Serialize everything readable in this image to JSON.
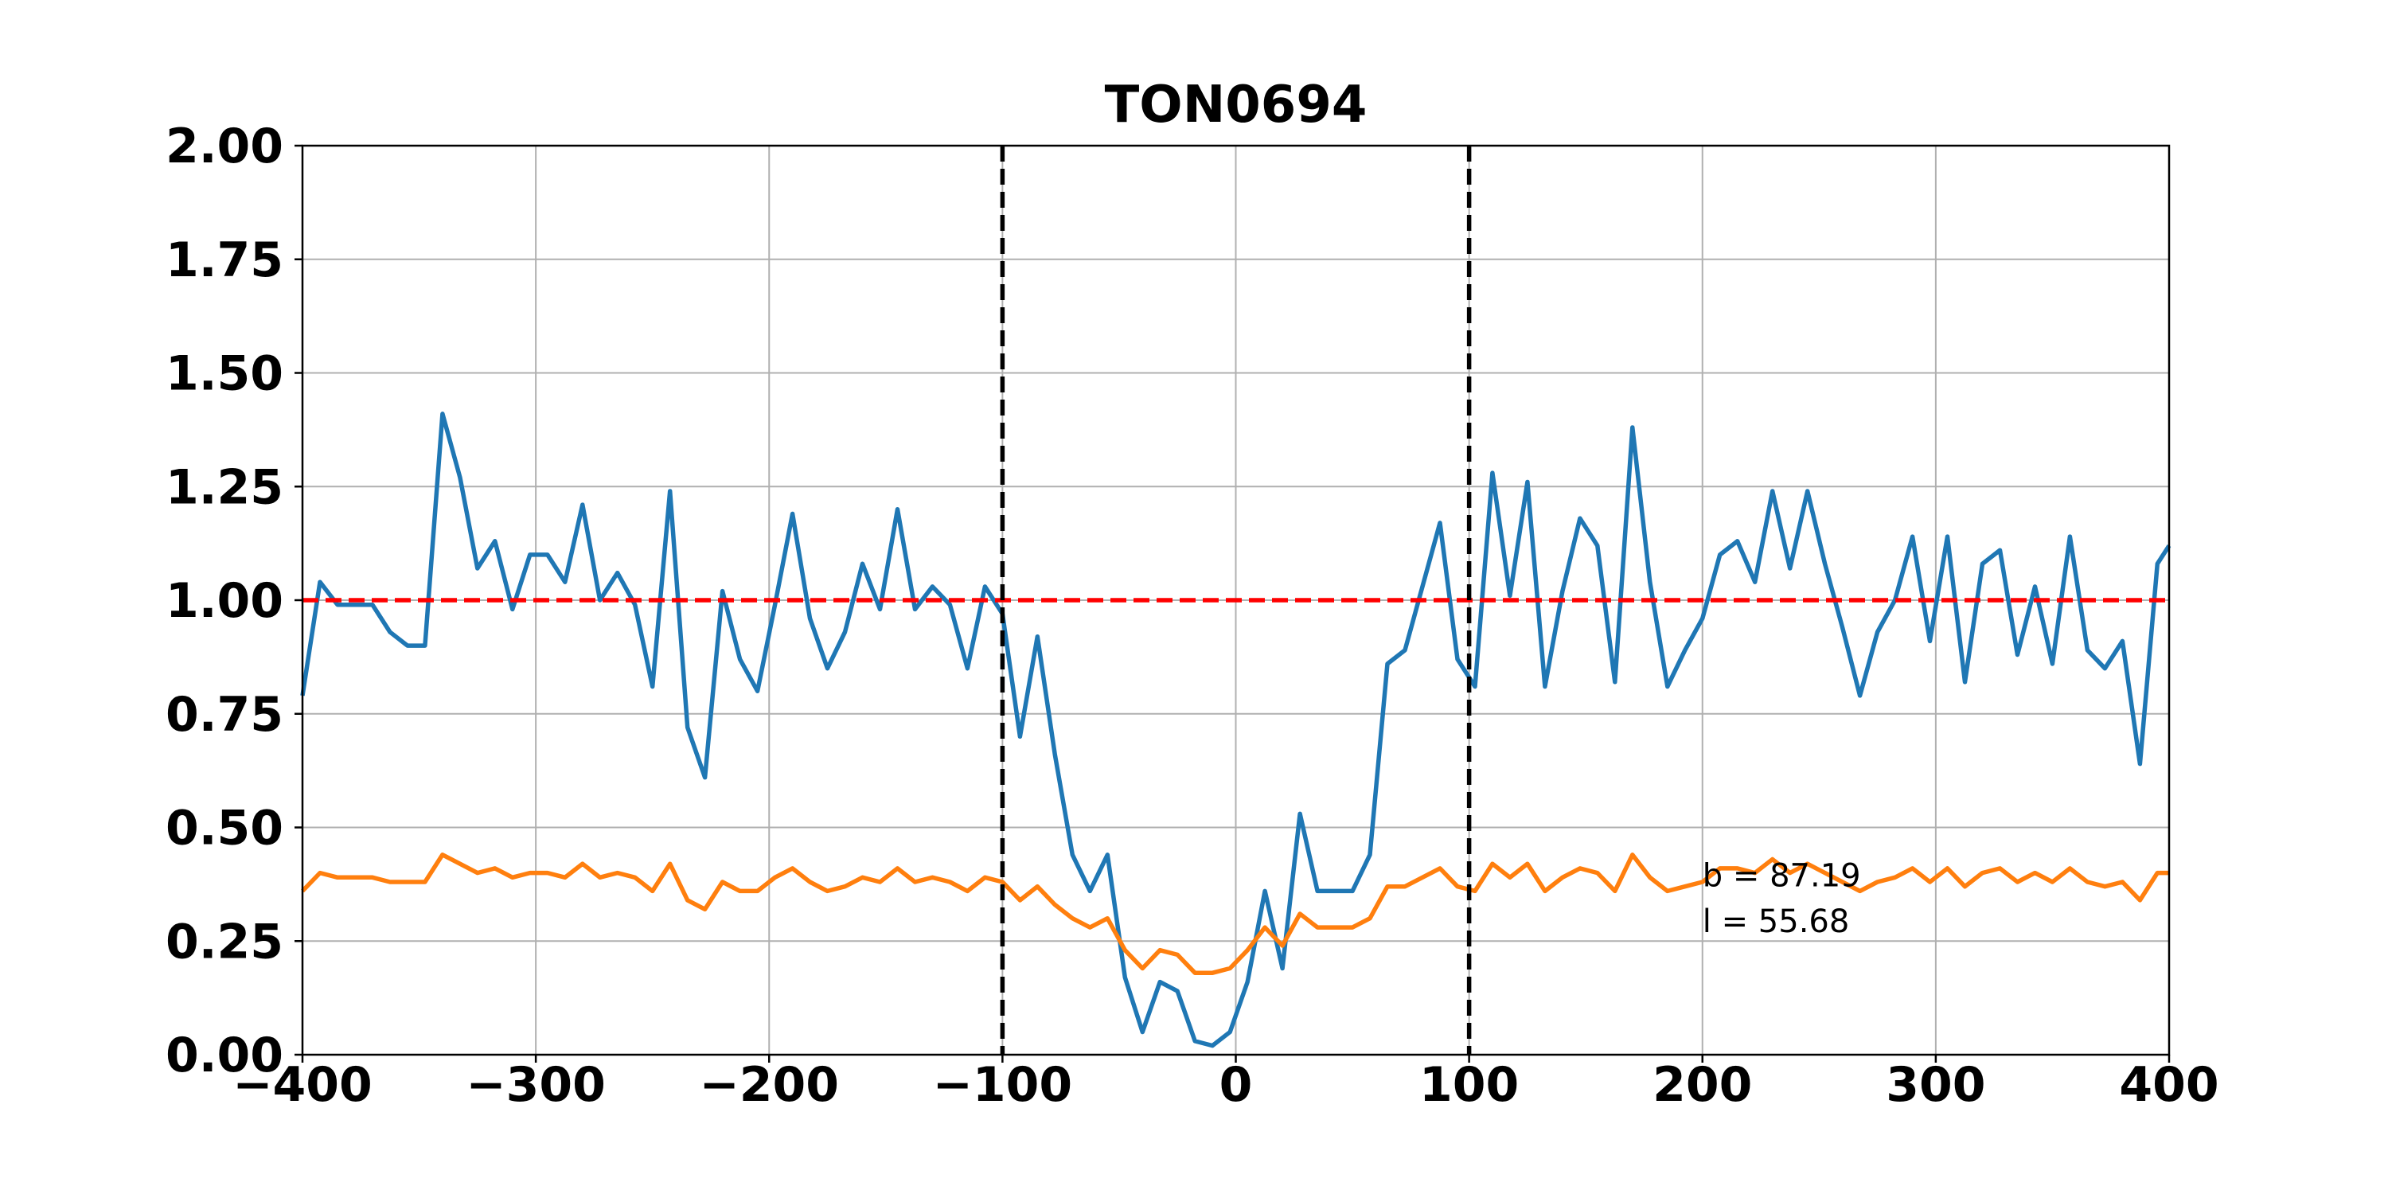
{
  "chart_data": {
    "type": "line",
    "title": "TON0694",
    "xlabel": "",
    "ylabel": "",
    "xlim": [
      -400,
      400
    ],
    "ylim": [
      0,
      2
    ],
    "xticks": [
      -400,
      -300,
      -200,
      -100,
      0,
      100,
      200,
      300,
      400
    ],
    "xtick_labels": [
      "−400",
      "−300",
      "−200",
      "−100",
      "0",
      "100",
      "200",
      "300",
      "400"
    ],
    "yticks": [
      0,
      0.25,
      0.5,
      0.75,
      1.0,
      1.25,
      1.5,
      1.75,
      2.0
    ],
    "ytick_labels": [
      "0.00",
      "0.25",
      "0.50",
      "0.75",
      "1.00",
      "1.25",
      "1.50",
      "1.75",
      "2.00"
    ],
    "grid": true,
    "x": [
      -400,
      -392.5,
      -385,
      -377.5,
      -370,
      -362.5,
      -355,
      -347.5,
      -340,
      -332.5,
      -325,
      -317.5,
      -310,
      -302.5,
      -295,
      -287.5,
      -280,
      -272.5,
      -265,
      -257.5,
      -250,
      -242.5,
      -235,
      -227.5,
      -220,
      -212.5,
      -205,
      -197.5,
      -190,
      -182.5,
      -175,
      -167.5,
      -160,
      -152.5,
      -145,
      -137.5,
      -130,
      -122.5,
      -115,
      -107.5,
      -100,
      -92.5,
      -85,
      -77.5,
      -70,
      -62.5,
      -55,
      -47.5,
      -40,
      -32.5,
      -25,
      -17.5,
      -10,
      -2.5,
      5,
      12.5,
      20,
      27.5,
      35,
      42.5,
      50,
      57.5,
      65,
      72.5,
      80,
      87.5,
      95,
      102.5,
      110,
      117.5,
      125,
      132.5,
      140,
      147.5,
      155,
      162.5,
      170,
      177.5,
      185,
      192.5,
      200,
      207.5,
      215,
      222.5,
      230,
      237.5,
      245,
      252.5,
      260,
      267.5,
      275,
      282.5,
      290,
      297.5,
      305,
      312.5,
      320,
      327.5,
      335,
      342.5,
      350,
      357.5,
      365,
      372.5,
      380,
      387.5,
      395,
      400
    ],
    "series": [
      {
        "color": "#1f77b4",
        "values": [
          0.79,
          1.04,
          0.99,
          0.99,
          0.99,
          0.93,
          0.9,
          0.9,
          1.41,
          1.27,
          1.07,
          1.13,
          0.98,
          1.1,
          1.1,
          1.04,
          1.21,
          1.0,
          1.06,
          0.99,
          0.81,
          1.24,
          0.72,
          0.61,
          1.02,
          0.87,
          0.8,
          0.99,
          1.19,
          0.96,
          0.85,
          0.93,
          1.08,
          0.98,
          1.2,
          0.98,
          1.03,
          0.99,
          0.85,
          1.03,
          0.97,
          0.7,
          0.92,
          0.66,
          0.44,
          0.36,
          0.44,
          0.17,
          0.05,
          0.16,
          0.14,
          0.03,
          0.02,
          0.05,
          0.16,
          0.36,
          0.19,
          0.53,
          0.36,
          0.36,
          0.36,
          0.44,
          0.86,
          0.89,
          1.03,
          1.17,
          0.87,
          0.81,
          1.28,
          1.01,
          1.26,
          0.81,
          1.02,
          1.18,
          1.12,
          0.82,
          1.38,
          1.04,
          0.81,
          0.89,
          0.96,
          1.1,
          1.13,
          1.04,
          1.24,
          1.07,
          1.24,
          1.08,
          0.94,
          0.79,
          0.93,
          1.0,
          1.14,
          0.91,
          1.14,
          0.82,
          1.08,
          1.11,
          0.88,
          1.03,
          0.86,
          1.14,
          0.89,
          0.85,
          0.91,
          0.64,
          1.08,
          1.12
        ]
      },
      {
        "color": "#ff7f0e",
        "values": [
          0.36,
          0.4,
          0.39,
          0.39,
          0.39,
          0.38,
          0.38,
          0.38,
          0.44,
          0.42,
          0.4,
          0.41,
          0.39,
          0.4,
          0.4,
          0.39,
          0.42,
          0.39,
          0.4,
          0.39,
          0.36,
          0.42,
          0.34,
          0.32,
          0.38,
          0.36,
          0.36,
          0.39,
          0.41,
          0.38,
          0.36,
          0.37,
          0.39,
          0.38,
          0.41,
          0.38,
          0.39,
          0.38,
          0.36,
          0.39,
          0.38,
          0.34,
          0.37,
          0.33,
          0.3,
          0.28,
          0.3,
          0.23,
          0.19,
          0.23,
          0.22,
          0.18,
          0.18,
          0.19,
          0.23,
          0.28,
          0.24,
          0.31,
          0.28,
          0.28,
          0.28,
          0.3,
          0.37,
          0.37,
          0.39,
          0.41,
          0.37,
          0.36,
          0.42,
          0.39,
          0.42,
          0.36,
          0.39,
          0.41,
          0.4,
          0.36,
          0.44,
          0.39,
          0.36,
          0.37,
          0.38,
          0.41,
          0.41,
          0.4,
          0.43,
          0.4,
          0.42,
          0.4,
          0.38,
          0.36,
          0.38,
          0.39,
          0.41,
          0.38,
          0.41,
          0.37,
          0.4,
          0.41,
          0.38,
          0.4,
          0.38,
          0.41,
          0.38,
          0.37,
          0.38,
          0.34,
          0.4,
          0.4
        ]
      }
    ],
    "reference_lines": {
      "horizontal": [
        {
          "y": 1.0,
          "color": "#ff0000",
          "style": "dashed"
        }
      ],
      "vertical": [
        {
          "x": -100,
          "color": "#000000",
          "style": "dashed"
        },
        {
          "x": 100,
          "color": "#000000",
          "style": "dashed"
        }
      ]
    },
    "annotations": [
      {
        "text": "b = 87.19",
        "x": 200,
        "y": 0.37
      },
      {
        "text": "l = 55.68",
        "x": 200,
        "y": 0.27
      }
    ]
  }
}
